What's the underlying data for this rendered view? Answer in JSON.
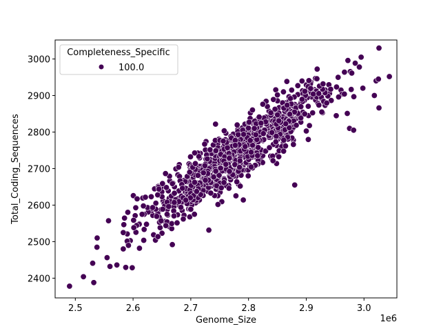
{
  "chart_data": {
    "type": "scatter",
    "title": "",
    "xlabel": "Genome_Size",
    "ylabel": "Total_Coding_Sequences",
    "x_offset_label": "1e6",
    "xlim": [
      2.465,
      3.057
    ],
    "ylim": [
      2346,
      3052
    ],
    "x_ticks": [
      2.5,
      2.6,
      2.7,
      2.8,
      2.9,
      3.0
    ],
    "x_tick_labels": [
      "2.5",
      "2.6",
      "2.7",
      "2.8",
      "2.9",
      "3.0"
    ],
    "y_ticks": [
      2400,
      2500,
      2600,
      2700,
      2800,
      2900,
      3000
    ],
    "y_tick_labels": [
      "2400",
      "2500",
      "2600",
      "2700",
      "2800",
      "2900",
      "3000"
    ],
    "grid": false,
    "legend": {
      "title": "Completeness_Specific",
      "position": "upper left",
      "entries": [
        {
          "label": "100.0",
          "color": "#440154"
        }
      ]
    },
    "series": [
      {
        "name": "100.0",
        "color": "#440154",
        "edgecolor": "#ffffff",
        "approx_point_count": 1000,
        "trend": {
          "slope_per_1e6": 1100,
          "intercept_at_2_5e6": 2430,
          "noise_sd": 38
        },
        "x_distribution": {
          "mean": 2.78,
          "sd": 0.085,
          "min": 2.49,
          "max": 3.044
        },
        "notable_points": [
          {
            "x": 2.49,
            "y": 2378
          },
          {
            "x": 2.514,
            "y": 2404
          },
          {
            "x": 2.53,
            "y": 2441
          },
          {
            "x": 2.532,
            "y": 2388
          },
          {
            "x": 2.56,
            "y": 2432
          },
          {
            "x": 2.572,
            "y": 2436
          },
          {
            "x": 2.583,
            "y": 2480
          },
          {
            "x": 2.607,
            "y": 2617
          },
          {
            "x": 2.651,
            "y": 2659
          },
          {
            "x": 2.668,
            "y": 2492
          },
          {
            "x": 2.698,
            "y": 2690
          },
          {
            "x": 2.791,
            "y": 2614
          },
          {
            "x": 2.81,
            "y": 2810
          },
          {
            "x": 2.88,
            "y": 2655
          },
          {
            "x": 2.929,
            "y": 2932
          },
          {
            "x": 2.956,
            "y": 2896
          },
          {
            "x": 2.966,
            "y": 2904
          },
          {
            "x": 2.975,
            "y": 2810
          },
          {
            "x": 2.982,
            "y": 2805
          },
          {
            "x": 2.992,
            "y": 2978
          },
          {
            "x": 2.995,
            "y": 3005
          },
          {
            "x": 2.998,
            "y": 2920
          },
          {
            "x": 3.018,
            "y": 2900
          },
          {
            "x": 3.021,
            "y": 2940
          },
          {
            "x": 3.025,
            "y": 2945
          },
          {
            "x": 3.026,
            "y": 3030
          },
          {
            "x": 3.026,
            "y": 2866
          },
          {
            "x": 3.044,
            "y": 2952
          }
        ]
      }
    ]
  }
}
